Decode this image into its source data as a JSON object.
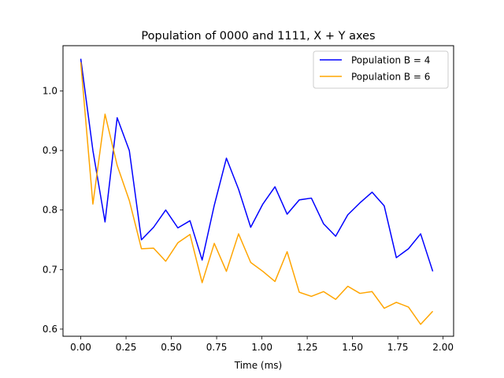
{
  "chart_data": {
    "type": "line",
    "title": "Population of 0000 and 1111, X + Y axes",
    "xlabel": "Time (ms)",
    "ylabel": "",
    "xlim": [
      -0.098,
      2.058
    ],
    "ylim": [
      0.588,
      1.076
    ],
    "xticks": [
      0.0,
      0.25,
      0.5,
      0.75,
      1.0,
      1.25,
      1.5,
      1.75,
      2.0
    ],
    "xtick_labels": [
      "0.00",
      "0.25",
      "0.50",
      "0.75",
      "1.00",
      "1.25",
      "1.50",
      "1.75",
      "2.00"
    ],
    "yticks": [
      0.6,
      0.7,
      0.8,
      0.9,
      1.0
    ],
    "ytick_labels": [
      "0.6",
      "0.7",
      "0.8",
      "0.9",
      "1.0"
    ],
    "grid": false,
    "legend_position": "top-right",
    "x": [
      0.0,
      0.067,
      0.134,
      0.201,
      0.268,
      0.335,
      0.402,
      0.469,
      0.536,
      0.603,
      0.67,
      0.737,
      0.804,
      0.871,
      0.938,
      1.005,
      1.072,
      1.139,
      1.206,
      1.273,
      1.34,
      1.407,
      1.474,
      1.541,
      1.608,
      1.675,
      1.742,
      1.809,
      1.876,
      1.943
    ],
    "series": [
      {
        "name": "Population B = 4",
        "color": "#0000ff",
        "values": [
          1.054,
          0.9,
          0.78,
          0.955,
          0.9,
          0.75,
          0.771,
          0.8,
          0.77,
          0.782,
          0.716,
          0.808,
          0.887,
          0.835,
          0.771,
          0.81,
          0.839,
          0.793,
          0.817,
          0.82,
          0.777,
          0.756,
          0.792,
          0.812,
          0.83,
          0.807,
          0.72,
          0.735,
          0.76,
          0.697
        ]
      },
      {
        "name": "Population B = 6",
        "color": "#ffa500",
        "values": [
          1.048,
          0.81,
          0.961,
          0.875,
          0.816,
          0.735,
          0.736,
          0.714,
          0.745,
          0.759,
          0.678,
          0.744,
          0.697,
          0.76,
          0.712,
          0.697,
          0.68,
          0.73,
          0.662,
          0.655,
          0.663,
          0.65,
          0.672,
          0.66,
          0.663,
          0.635,
          0.645,
          0.637,
          0.608,
          0.63
        ]
      }
    ]
  }
}
